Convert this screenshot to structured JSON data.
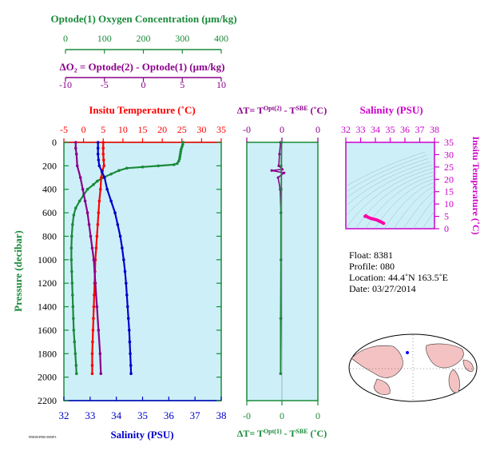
{
  "colors": {
    "oxygen": "#1a8a3a",
    "temperature": "#ff0000",
    "salinity": "#0000cc",
    "delta": "#8b008b",
    "ts_axis": "#cc00cc",
    "panel_bg": "#cdf0f8",
    "pressure_axis": "#1a8a3a"
  },
  "labels": {
    "oxy_title": "Optode(1) Oxygen Concentration (μm/kg)",
    "oxy_ticks": [
      "0",
      "100",
      "200",
      "300",
      "400"
    ],
    "do2_title": "ΔO₂ = Optode(2) - Optode(1)   (μm/kg)",
    "do2_ticks": [
      "-10",
      "-5",
      "0",
      "5",
      "10"
    ],
    "temp_title": "Insitu Temperature (˚C)",
    "temp_ticks": [
      "-5",
      "0",
      "5",
      "10",
      "15",
      "20",
      "25",
      "30",
      "35"
    ],
    "sal_title": "Salinity (PSU)",
    "sal_ticks": [
      "32",
      "33",
      "34",
      "35",
      "36",
      "37",
      "38"
    ],
    "pres_title": "Pressure (decibar)",
    "pres_ticks": [
      "0",
      "200",
      "400",
      "600",
      "800",
      "1000",
      "1200",
      "1400",
      "1600",
      "1800",
      "2000",
      "2200"
    ],
    "dt_top_title": "ΔT= T^Opt(2) - T^SBE (˚C)",
    "dt_bottom_title": "ΔT= T^Opt(1) - T^SBE (˚C)",
    "dt_ticks": [
      "-0",
      "0",
      "0"
    ],
    "ts_sal_title": "Salinity (PSU)",
    "ts_sal_ticks": [
      "32",
      "33",
      "34",
      "35",
      "36",
      "37",
      "38"
    ],
    "ts_temp_title": "Insitu Temperature (˚C)",
    "ts_temp_ticks": [
      "0",
      "5",
      "10",
      "15",
      "20",
      "25",
      "30",
      "35"
    ],
    "footer": "FB8381P080 0000P3"
  },
  "float_info": {
    "float_line": "Float:  8381",
    "profile_line": "Profile:  080",
    "location_line": "Location:  44.4˚N  163.5˚E",
    "date_line": "Date:  03/27/2014"
  },
  "chart_data": [
    {
      "type": "line",
      "title": "Float 8381 Profile 080",
      "ylabel": "Pressure (decibar)",
      "ylim": [
        2200,
        0
      ],
      "series": [
        {
          "name": "Optode(1) Oxygen Concentration (μm/kg)",
          "xlim": [
            0,
            400
          ],
          "points": [
            [
              303,
              0
            ],
            [
              302,
              20
            ],
            [
              300,
              40
            ],
            [
              298,
              60
            ],
            [
              297,
              80
            ],
            [
              296,
              100
            ],
            [
              295,
              120
            ],
            [
              294,
              140
            ],
            [
              292,
              160
            ],
            [
              288,
              180
            ],
            [
              280,
              190
            ],
            [
              240,
              200
            ],
            [
              200,
              210
            ],
            [
              160,
              220
            ],
            [
              140,
              240
            ],
            [
              120,
              270
            ],
            [
              100,
              300
            ],
            [
              85,
              330
            ],
            [
              75,
              360
            ],
            [
              60,
              400
            ],
            [
              50,
              450
            ],
            [
              40,
              500
            ],
            [
              30,
              560
            ],
            [
              25,
              620
            ],
            [
              22,
              700
            ],
            [
              20,
              800
            ],
            [
              19,
              900
            ],
            [
              19,
              1000
            ],
            [
              20,
              1100
            ],
            [
              21,
              1200
            ],
            [
              22,
              1300
            ],
            [
              23,
              1400
            ],
            [
              24,
              1500
            ],
            [
              25,
              1600
            ],
            [
              27,
              1700
            ],
            [
              29,
              1800
            ],
            [
              31,
              1900
            ],
            [
              32,
              1970
            ]
          ]
        },
        {
          "name": "Insitu Temperature (˚C)",
          "xlim": [
            -5,
            35
          ],
          "points": [
            [
              5.0,
              0
            ],
            [
              5.0,
              50
            ],
            [
              5.0,
              100
            ],
            [
              5.1,
              150
            ],
            [
              5.2,
              200
            ],
            [
              4.8,
              240
            ],
            [
              4.5,
              300
            ],
            [
              4.3,
              400
            ],
            [
              4.0,
              500
            ],
            [
              3.8,
              600
            ],
            [
              3.6,
              700
            ],
            [
              3.4,
              800
            ],
            [
              3.2,
              900
            ],
            [
              3.0,
              1000
            ],
            [
              2.9,
              1100
            ],
            [
              2.8,
              1200
            ],
            [
              2.7,
              1300
            ],
            [
              2.6,
              1400
            ],
            [
              2.5,
              1500
            ],
            [
              2.4,
              1600
            ],
            [
              2.3,
              1700
            ],
            [
              2.2,
              1800
            ],
            [
              2.2,
              1900
            ],
            [
              2.2,
              1970
            ]
          ]
        },
        {
          "name": "Salinity (PSU)",
          "xlim": [
            32,
            38
          ],
          "points": [
            [
              33.3,
              0
            ],
            [
              33.3,
              50
            ],
            [
              33.3,
              100
            ],
            [
              33.32,
              150
            ],
            [
              33.35,
              200
            ],
            [
              33.45,
              250
            ],
            [
              33.55,
              300
            ],
            [
              33.65,
              400
            ],
            [
              33.8,
              500
            ],
            [
              33.95,
              600
            ],
            [
              34.05,
              700
            ],
            [
              34.15,
              800
            ],
            [
              34.22,
              900
            ],
            [
              34.28,
              1000
            ],
            [
              34.33,
              1100
            ],
            [
              34.37,
              1200
            ],
            [
              34.4,
              1300
            ],
            [
              34.43,
              1400
            ],
            [
              34.46,
              1500
            ],
            [
              34.49,
              1600
            ],
            [
              34.51,
              1700
            ],
            [
              34.53,
              1800
            ],
            [
              34.55,
              1900
            ],
            [
              34.56,
              1970
            ]
          ]
        },
        {
          "name": "ΔO₂ = Optode(2) - Optode(1)   (μm/kg)",
          "xlim": [
            -10,
            10
          ],
          "points": [
            [
              -8.5,
              0
            ],
            [
              -8.5,
              50
            ],
            [
              -8.4,
              100
            ],
            [
              -8.3,
              200
            ],
            [
              -7.9,
              300
            ],
            [
              -7.6,
              400
            ],
            [
              -7.3,
              500
            ],
            [
              -7.0,
              600
            ],
            [
              -6.8,
              700
            ],
            [
              -6.6,
              800
            ],
            [
              -6.4,
              900
            ],
            [
              -6.2,
              1000
            ],
            [
              -6.0,
              1200
            ],
            [
              -5.8,
              1400
            ],
            [
              -5.6,
              1600
            ],
            [
              -5.4,
              1800
            ],
            [
              -5.3,
              1970
            ]
          ]
        }
      ]
    },
    {
      "type": "scatter",
      "title": "ΔT= T^Opt(2) - T^SBE (˚C)",
      "xlabel": "ΔT= T^Opt(1) - T^SBE (˚C)",
      "ylabel": "Pressure (decibar)",
      "xlim": [
        -1,
        1
      ],
      "ylim": [
        2200,
        0
      ],
      "series": [
        {
          "name": "T^Opt(2) - T^SBE",
          "points": [
            [
              -0.05,
              0
            ],
            [
              -0.08,
              100
            ],
            [
              -0.1,
              200
            ],
            [
              0.0,
              230
            ],
            [
              -0.3,
              240
            ],
            [
              0.05,
              260
            ],
            [
              -0.12,
              300
            ],
            [
              -0.06,
              400
            ],
            [
              -0.04,
              600
            ],
            [
              -0.04,
              1000
            ],
            [
              -0.04,
              1500
            ],
            [
              -0.05,
              1970
            ]
          ]
        },
        {
          "name": "T^Opt(1) - T^SBE",
          "points": [
            [
              -0.02,
              0
            ],
            [
              -0.03,
              200
            ],
            [
              -0.03,
              400
            ],
            [
              -0.04,
              600
            ],
            [
              -0.04,
              1000
            ],
            [
              -0.05,
              1500
            ],
            [
              -0.05,
              1970
            ]
          ]
        }
      ]
    },
    {
      "type": "scatter",
      "title": "Salinity (PSU)",
      "xlabel": "Salinity (PSU)",
      "ylabel": "Insitu Temperature (˚C)",
      "xlim": [
        32,
        38
      ],
      "ylim": [
        0,
        35
      ],
      "grid": true,
      "series": [
        {
          "name": "T-S",
          "points": [
            [
              33.3,
              5.0
            ],
            [
              33.35,
              5.2
            ],
            [
              33.45,
              4.8
            ],
            [
              33.55,
              4.5
            ],
            [
              33.65,
              4.3
            ],
            [
              33.8,
              4.0
            ],
            [
              33.95,
              3.8
            ],
            [
              34.05,
              3.6
            ],
            [
              34.15,
              3.4
            ],
            [
              34.22,
              3.2
            ],
            [
              34.28,
              3.0
            ],
            [
              34.33,
              2.9
            ],
            [
              34.37,
              2.8
            ],
            [
              34.4,
              2.7
            ],
            [
              34.43,
              2.6
            ],
            [
              34.46,
              2.5
            ],
            [
              34.49,
              2.4
            ],
            [
              34.51,
              2.3
            ],
            [
              34.53,
              2.2
            ],
            [
              34.56,
              2.2
            ]
          ]
        }
      ]
    }
  ]
}
